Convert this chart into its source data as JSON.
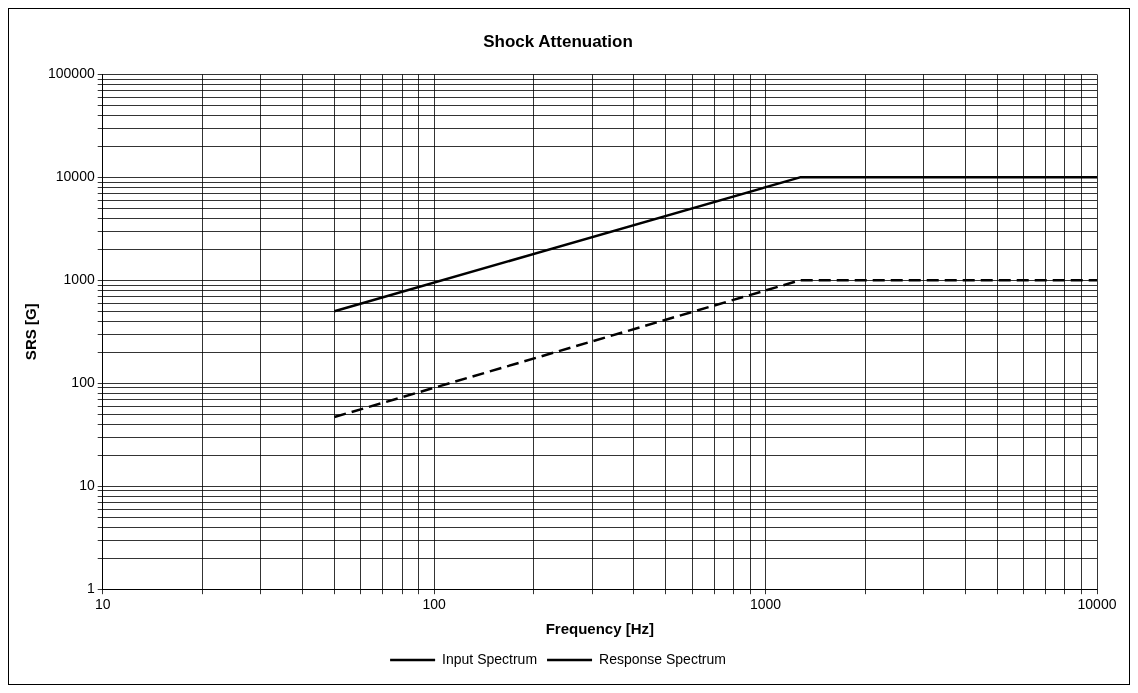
{
  "chart_data": {
    "type": "line",
    "title": "Shock Attenuation",
    "xlabel": "Frequency [Hz]",
    "ylabel": "SRS [G]",
    "log": "xy",
    "grid": true,
    "legend": "bottom",
    "marker": "none",
    "xlim": [
      10,
      10000
    ],
    "ylim": [
      1,
      100000
    ],
    "xticks": [
      10,
      {
        "value": 20,
        "label": null
      },
      {
        "value": 30,
        "label": null
      },
      {
        "value": 40,
        "label": null
      },
      {
        "value": 50,
        "label": null
      },
      {
        "value": 60,
        "label": null
      },
      {
        "value": 70,
        "label": null
      },
      {
        "value": 80,
        "label": null
      },
      {
        "value": 90,
        "label": null
      },
      100,
      {
        "value": 200,
        "label": null
      },
      {
        "value": 300,
        "label": null
      },
      {
        "value": 400,
        "label": null
      },
      {
        "value": 500,
        "label": null
      },
      {
        "value": 600,
        "label": null
      },
      {
        "value": 700,
        "label": null
      },
      {
        "value": 800,
        "label": null
      },
      {
        "value": 900,
        "label": null
      },
      1000,
      {
        "value": 2000,
        "label": null
      },
      {
        "value": 3000,
        "label": null
      },
      {
        "value": 4000,
        "label": null
      },
      {
        "value": 5000,
        "label": null
      },
      {
        "value": 6000,
        "label": null
      },
      {
        "value": 7000,
        "label": null
      },
      {
        "value": 8000,
        "label": null
      },
      {
        "value": 9000,
        "label": null
      },
      10000
    ],
    "yticks": [
      1,
      {
        "value": 2,
        "label": null
      },
      {
        "value": 3,
        "label": null
      },
      {
        "value": 4,
        "label": null
      },
      {
        "value": 5,
        "label": null
      },
      {
        "value": 6,
        "label": null
      },
      {
        "value": 7,
        "label": null
      },
      {
        "value": 8,
        "label": null
      },
      {
        "value": 9,
        "label": null
      },
      10,
      {
        "value": 20,
        "label": null
      },
      {
        "value": 30,
        "label": null
      },
      {
        "value": 40,
        "label": null
      },
      {
        "value": 50,
        "label": null
      },
      {
        "value": 60,
        "label": null
      },
      {
        "value": 70,
        "label": null
      },
      {
        "value": 80,
        "label": null
      },
      {
        "value": 90,
        "label": null
      },
      100,
      {
        "value": 200,
        "label": null
      },
      {
        "value": 300,
        "label": null
      },
      {
        "value": 400,
        "label": null
      },
      {
        "value": 500,
        "label": null
      },
      {
        "value": 600,
        "label": null
      },
      {
        "value": 700,
        "label": null
      },
      {
        "value": 800,
        "label": null
      },
      {
        "value": 900,
        "label": null
      },
      1000,
      {
        "value": 2000,
        "label": null
      },
      {
        "value": 3000,
        "label": null
      },
      {
        "value": 4000,
        "label": null
      },
      {
        "value": 5000,
        "label": null
      },
      {
        "value": 6000,
        "label": null
      },
      {
        "value": 7000,
        "label": null
      },
      {
        "value": 8000,
        "label": null
      },
      {
        "value": 9000,
        "label": null
      },
      10000,
      {
        "value": 20000,
        "label": null
      },
      {
        "value": 30000,
        "label": null
      },
      {
        "value": 40000,
        "label": null
      },
      {
        "value": 50000,
        "label": null
      },
      {
        "value": 60000,
        "label": null
      },
      {
        "value": 70000,
        "label": null
      },
      {
        "value": 80000,
        "label": null
      },
      {
        "value": 90000,
        "label": null
      },
      100000
    ],
    "series": [
      {
        "name": "Input Spectrum",
        "color": "#000000",
        "line_style": "solid",
        "x": [
          50,
          1270,
          10000
        ],
        "values": [
          500,
          10000,
          10000
        ]
      },
      {
        "name": "Response Spectrum",
        "color": "#000000",
        "line_style": "dashed",
        "x": [
          50,
          1270,
          10000
        ],
        "values": [
          47,
          1000,
          1000
        ]
      }
    ]
  }
}
